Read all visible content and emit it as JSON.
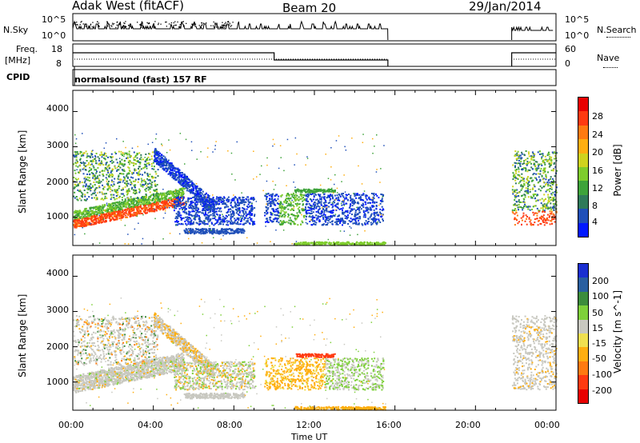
{
  "header": {
    "station": "Adak West (fitACF)",
    "beam": "Beam 20",
    "date": "29/Jan/2014"
  },
  "panels": {
    "nsky": {
      "label": "N.Sky",
      "tick_top": "10^5",
      "tick_bottom": "10^0"
    },
    "nsearch": {
      "label": "N.Search",
      "tick_top": "10^5",
      "tick_bottom": "10^0"
    },
    "freq": {
      "label_line1": "Freq.",
      "label_line2": "[MHz]",
      "tick_top": "18",
      "tick_bottom": "8"
    },
    "nave": {
      "label": "Nave",
      "tick_top": "60",
      "tick_bottom": "0"
    },
    "cpid": {
      "label": "CPID",
      "value": "normalsound (fast) 157 RF"
    }
  },
  "chart_data": [
    {
      "type": "heatmap",
      "name": "power",
      "ylabel": "Slant Range [km]",
      "xlabel": "Time UT",
      "x_ticks": [
        "00:00",
        "04:00",
        "08:00",
        "12:00",
        "16:00",
        "20:00",
        "00:00"
      ],
      "y_ticks": [
        "1000",
        "2000",
        "3000",
        "4000"
      ],
      "ylim": [
        200,
        4600
      ],
      "xlim_hours": [
        0,
        24
      ],
      "colorbar": {
        "label": "Power [dB]",
        "ticks": [
          "4",
          "8",
          "12",
          "16",
          "20",
          "24",
          "28"
        ],
        "colors": [
          "#0018ff",
          "#1f4fb8",
          "#2f7a5a",
          "#3ea33a",
          "#7ecc2c",
          "#cfd31e",
          "#ffae10",
          "#ff7a10",
          "#ff3a10",
          "#e80000"
        ]
      }
    },
    {
      "type": "heatmap",
      "name": "velocity",
      "ylabel": "Slant Range [km]",
      "xlabel": "Time UT",
      "x_ticks": [
        "00:00",
        "04:00",
        "08:00",
        "12:00",
        "16:00",
        "20:00",
        "00:00"
      ],
      "y_ticks": [
        "1000",
        "2000",
        "3000",
        "4000"
      ],
      "ylim": [
        200,
        4600
      ],
      "xlim_hours": [
        0,
        24
      ],
      "colorbar": {
        "label": "Velocity [m s^-1]",
        "ticks": [
          "200",
          "100",
          "50",
          "15",
          "-15",
          "-50",
          "-100",
          "-200"
        ],
        "colors": [
          "#1a2fd1",
          "#2a5fa0",
          "#3c8c3c",
          "#7ed03a",
          "#c8c8c0",
          "#f0e050",
          "#ffae10",
          "#ff7a10",
          "#ff3a10",
          "#e80000"
        ]
      }
    }
  ],
  "footer": {
    "xlabel": "Time UT"
  }
}
